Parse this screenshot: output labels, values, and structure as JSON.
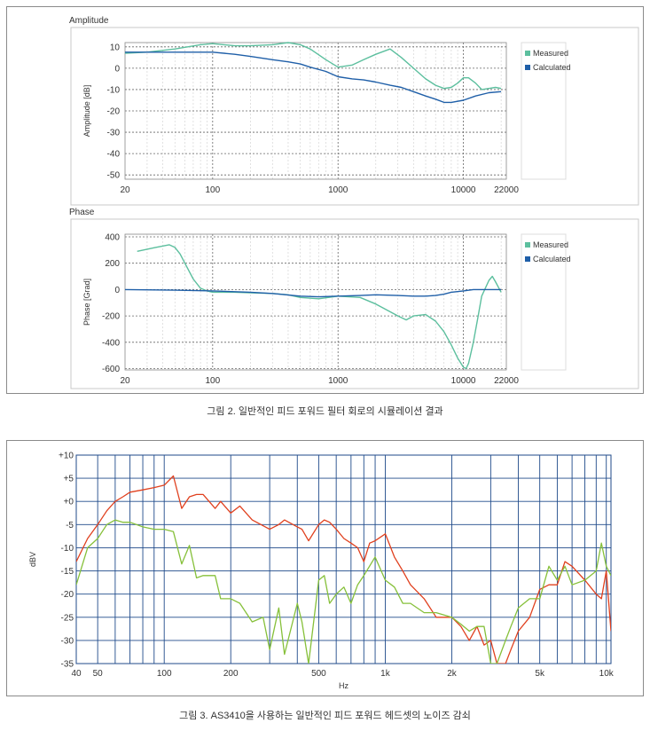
{
  "figure2": {
    "caption": "그림 2. 일반적인 피드 포워드 필터 회로의 시뮬레이션 결과",
    "charts": [
      {
        "panel_title": "Amplitude",
        "ylabel": "Amplitude [dB]",
        "yticks": [
          10,
          0,
          -10,
          -20,
          -30,
          -40,
          -50
        ],
        "ylim": [
          -52,
          12
        ],
        "xticks": [
          20,
          100,
          1000,
          10000,
          22000
        ],
        "xtick_labels": [
          "20",
          "100",
          "1000",
          "10000",
          "22000"
        ],
        "legend": [
          "Measured",
          "Calculated"
        ]
      },
      {
        "panel_title": "Phase",
        "ylabel": "Phase [Grad]",
        "yticks": [
          400,
          200,
          0,
          -200,
          -400,
          -600
        ],
        "ylim": [
          -610,
          420
        ],
        "xticks": [
          20,
          100,
          1000,
          10000,
          22000
        ],
        "xtick_labels": [
          "20",
          "100",
          "1000",
          "10000",
          "22000"
        ],
        "legend": [
          "Measured",
          "Calculated"
        ]
      }
    ]
  },
  "figure3": {
    "caption": "그림 3. AS3410을 사용하는 일반적인 피드 포워드 헤드셋의 노이즈 감쇠",
    "ylabel": "dBV",
    "xlabel": "Hz",
    "yticks": [
      "+10",
      "+5",
      "+0",
      "-5",
      "-10",
      "-15",
      "-20",
      "-25",
      "-30",
      "-35"
    ],
    "xtick_labels": [
      "40",
      "50",
      "100",
      "200",
      "500",
      "1k",
      "2k",
      "5k",
      "10k"
    ]
  },
  "colors": {
    "measured": "#5cbf9e",
    "calculated": "#1f5fa8",
    "noise_red": "#e0401e",
    "noise_green": "#86c03a",
    "grid3": "#1f4a8a"
  },
  "chart_data": [
    {
      "type": "line",
      "title": "Amplitude",
      "ylabel": "Amplitude [dB]",
      "xscale": "log",
      "xlim": [
        20,
        22000
      ],
      "ylim": [
        -52,
        12
      ],
      "grid": true,
      "legend_position": "right",
      "series": [
        {
          "name": "Measured",
          "x": [
            20,
            30,
            50,
            80,
            100,
            150,
            200,
            300,
            400,
            500,
            600,
            800,
            1000,
            1300,
            1600,
            2000,
            2600,
            3200,
            4000,
            5000,
            6000,
            7000,
            8000,
            9000,
            10000,
            11000,
            12500,
            14000,
            16000,
            18000,
            20000
          ],
          "y": [
            7,
            7.5,
            9,
            11,
            11.5,
            10.5,
            10.5,
            11,
            12,
            11,
            9,
            4,
            0.5,
            1.5,
            4,
            6.5,
            9,
            5,
            0,
            -5,
            -8,
            -9.5,
            -9,
            -7,
            -4.5,
            -4.5,
            -7,
            -10,
            -9.5,
            -9,
            -9.5
          ]
        },
        {
          "name": "Calculated",
          "x": [
            20,
            50,
            100,
            150,
            200,
            300,
            400,
            500,
            600,
            800,
            1000,
            1300,
            1600,
            2000,
            2600,
            3200,
            4000,
            5000,
            6000,
            7000,
            8000,
            10000,
            12500,
            16000,
            20000
          ],
          "y": [
            7.5,
            7.5,
            7.5,
            6.5,
            5.5,
            4,
            3,
            2,
            0.5,
            -1.5,
            -4,
            -5,
            -5.5,
            -6.5,
            -8,
            -9,
            -11,
            -13,
            -14.5,
            -16,
            -16,
            -15,
            -13,
            -11.5,
            -11
          ]
        }
      ]
    },
    {
      "type": "line",
      "title": "Phase",
      "ylabel": "Phase [Grad]",
      "xscale": "log",
      "xlim": [
        20,
        22000
      ],
      "ylim": [
        -610,
        420
      ],
      "grid": true,
      "legend_position": "right",
      "series": [
        {
          "name": "Measured",
          "x": [
            25,
            35,
            45,
            50,
            55,
            60,
            70,
            80,
            90,
            100,
            150,
            200,
            300,
            400,
            500,
            700,
            1000,
            1500,
            2000,
            3000,
            3500,
            4000,
            5000,
            6000,
            7000,
            8000,
            9000,
            10000,
            10500,
            11000,
            12000,
            13000,
            14000,
            16000,
            17000,
            18000,
            20000
          ],
          "y": [
            290,
            320,
            340,
            320,
            270,
            200,
            80,
            10,
            -10,
            -20,
            -20,
            -25,
            -30,
            -40,
            -60,
            -70,
            -50,
            -60,
            -110,
            -200,
            -230,
            -200,
            -190,
            -240,
            -320,
            -420,
            -520,
            -590,
            -600,
            -560,
            -400,
            -220,
            -50,
            70,
            100,
            60,
            -20
          ]
        },
        {
          "name": "Calculated",
          "x": [
            20,
            50,
            100,
            200,
            300,
            500,
            700,
            1000,
            1500,
            2000,
            3000,
            4000,
            5000,
            6000,
            7000,
            8000,
            10000,
            12000,
            15000,
            20000
          ],
          "y": [
            0,
            -5,
            -10,
            -20,
            -30,
            -50,
            -55,
            -50,
            -45,
            -40,
            -45,
            -50,
            -50,
            -45,
            -35,
            -20,
            -10,
            0,
            0,
            0
          ]
        }
      ]
    },
    {
      "type": "line",
      "title": "",
      "xlabel": "Hz",
      "ylabel": "dBV",
      "xscale": "log",
      "xlim": [
        40,
        10500
      ],
      "ylim": [
        -35,
        10
      ],
      "grid": true,
      "series": [
        {
          "x": [
            40,
            45,
            50,
            55,
            60,
            65,
            70,
            80,
            90,
            100,
            110,
            120,
            130,
            140,
            150,
            170,
            180,
            200,
            220,
            250,
            300,
            330,
            350,
            400,
            420,
            450,
            500,
            530,
            560,
            600,
            650,
            700,
            750,
            800,
            850,
            900,
            1000,
            1100,
            1200,
            1300,
            1500,
            1700,
            1800,
            2000,
            2200,
            2400,
            2600,
            2800,
            3000,
            3200,
            3500,
            3700,
            4000,
            4500,
            5000,
            5500,
            6000,
            6500,
            7000,
            8000,
            9000,
            9500,
            10000,
            10500
          ],
          "y": [
            -13,
            -8,
            -5,
            -2,
            0,
            1,
            2,
            2.5,
            3,
            3.5,
            5.5,
            -1.5,
            1,
            1.5,
            1.5,
            -1.5,
            0,
            -2.5,
            -1,
            -4,
            -6,
            -5,
            -4,
            -5.5,
            -6,
            -8.5,
            -5,
            -4,
            -4.5,
            -6,
            -8,
            -9,
            -10,
            -13,
            -9,
            -8.5,
            -7,
            -12,
            -15,
            -18,
            -21,
            -25,
            -25,
            -25,
            -27,
            -30,
            -27,
            -31,
            -30,
            -35,
            -35,
            -32,
            -28,
            -25,
            -19,
            -18,
            -18,
            -13,
            -14,
            -17,
            -20,
            -21,
            -15,
            -28
          ]
        },
        {
          "x": [
            40,
            45,
            50,
            55,
            60,
            65,
            70,
            80,
            90,
            100,
            110,
            120,
            130,
            140,
            150,
            170,
            180,
            200,
            220,
            250,
            280,
            300,
            330,
            350,
            400,
            420,
            450,
            500,
            530,
            560,
            600,
            650,
            700,
            750,
            800,
            900,
            1000,
            1100,
            1200,
            1300,
            1500,
            1700,
            2000,
            2200,
            2400,
            2600,
            2800,
            3000,
            3200,
            3500,
            3700,
            4000,
            4500,
            5000,
            5500,
            6000,
            6500,
            7000,
            8000,
            9000,
            9500,
            10000,
            10500
          ],
          "y": [
            -18,
            -10,
            -8,
            -5,
            -4,
            -4.5,
            -4.5,
            -5.5,
            -6,
            -6,
            -6.5,
            -13.5,
            -9.5,
            -16.5,
            -16,
            -16,
            -21,
            -21,
            -22,
            -26,
            -25,
            -32,
            -23,
            -33,
            -22,
            -26,
            -35,
            -17,
            -16,
            -22,
            -20,
            -18.5,
            -22,
            -18,
            -16,
            -12,
            -17,
            -18.5,
            -22,
            -22,
            -24,
            -24,
            -25,
            -26.5,
            -28,
            -27,
            -27,
            -35,
            -35,
            -30,
            -27,
            -23,
            -21,
            -21,
            -14,
            -17,
            -14,
            -18,
            -17,
            -15,
            -9,
            -14,
            -16
          ]
        }
      ]
    }
  ]
}
